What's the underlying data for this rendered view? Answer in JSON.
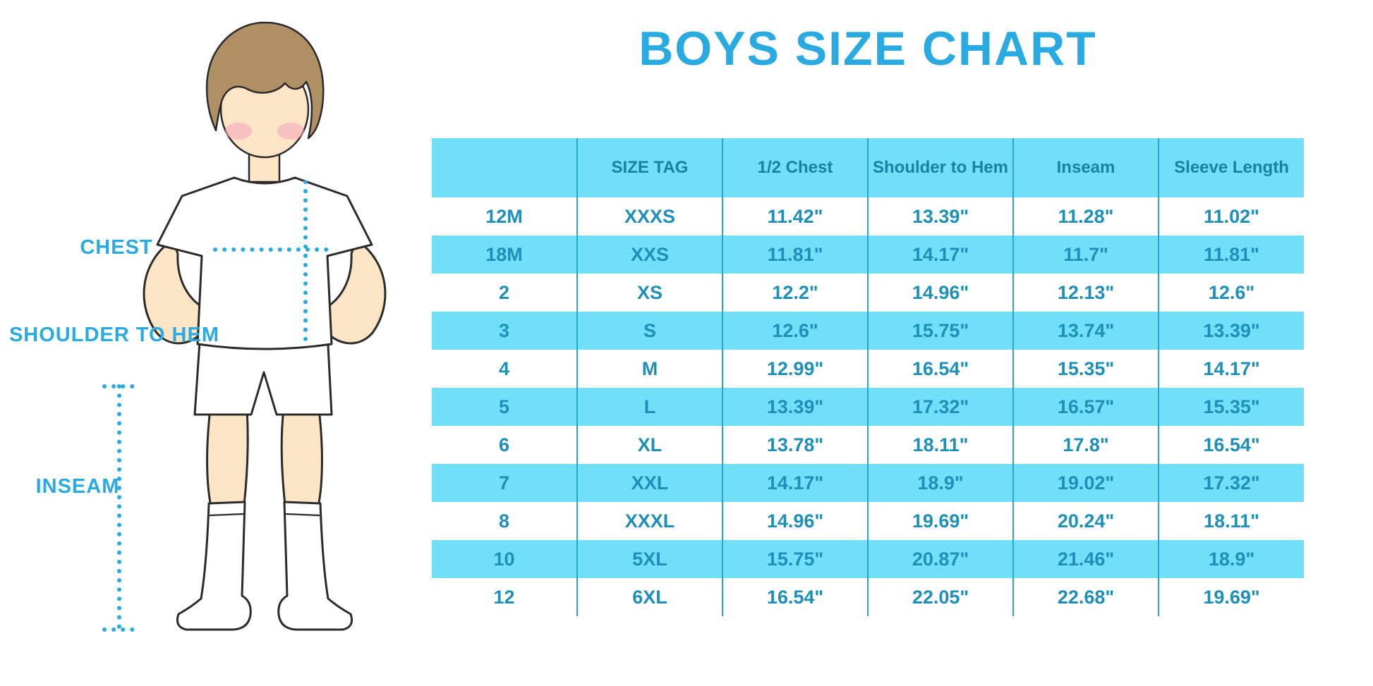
{
  "title": "BOYS SIZE CHART",
  "colors": {
    "accent": "#29ABE2",
    "stripe": "#70DFF7",
    "cell_text": "#1E8FB9",
    "header_text": "#1981A5",
    "border": "#2BA6CB",
    "skin": "#FBE5C5",
    "hair": "#AE9064",
    "cheek": "#F5A8BF",
    "outline": "#2b2b2b"
  },
  "diagram": {
    "labels": {
      "chest": "CHEST",
      "shoulder_to_hem": "SHOULDER TO HEM",
      "inseam": "INSEAM"
    },
    "illustration": "boy-in-white-tee-shorts-and-knee-socks-with-dotted-measurement-lines"
  },
  "chart_data": {
    "type": "table",
    "title": "BOYS SIZE CHART",
    "columns": [
      "",
      "SIZE TAG",
      "1/2 Chest",
      "Shoulder to Hem",
      "Inseam",
      "Sleeve Length"
    ],
    "rows": [
      [
        "12M",
        "XXXS",
        "11.42\"",
        "13.39\"",
        "11.28\"",
        "11.02\""
      ],
      [
        "18M",
        "XXS",
        "11.81\"",
        "14.17\"",
        "11.7\"",
        "11.81\""
      ],
      [
        "2",
        "XS",
        "12.2\"",
        "14.96\"",
        "12.13\"",
        "12.6\""
      ],
      [
        "3",
        "S",
        "12.6\"",
        "15.75\"",
        "13.74\"",
        "13.39\""
      ],
      [
        "4",
        "M",
        "12.99\"",
        "16.54\"",
        "15.35\"",
        "14.17\""
      ],
      [
        "5",
        "L",
        "13.39\"",
        "17.32\"",
        "16.57\"",
        "15.35\""
      ],
      [
        "6",
        "XL",
        "13.78\"",
        "18.11\"",
        "17.8\"",
        "16.54\""
      ],
      [
        "7",
        "XXL",
        "14.17\"",
        "18.9\"",
        "19.02\"",
        "17.32\""
      ],
      [
        "8",
        "XXXL",
        "14.96\"",
        "19.69\"",
        "20.24\"",
        "18.11\""
      ],
      [
        "10",
        "5XL",
        "15.75\"",
        "20.87\"",
        "21.46\"",
        "18.9\""
      ],
      [
        "12",
        "6XL",
        "16.54\"",
        "22.05\"",
        "22.68\"",
        "19.69\""
      ]
    ],
    "row_striping": "alternating-white-and-cyan-starting-white",
    "units": "inches"
  }
}
